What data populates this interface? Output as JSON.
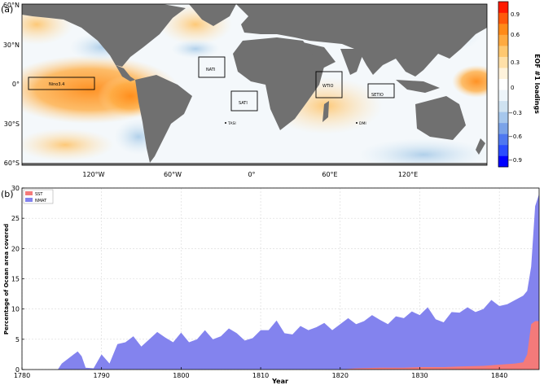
{
  "panel_a": {
    "label": "(a)",
    "lat_ticks": [
      "60°N",
      "30°N",
      "0°",
      "30°S",
      "60°S"
    ],
    "lon_ticks": [
      "120°W",
      "60°W",
      "0°",
      "60°E",
      "120°E"
    ],
    "boxes": [
      "Nino3.4",
      "NATI",
      "SATI",
      "WTIO",
      "SETIO"
    ],
    "markers": [
      "TASI",
      "DMI"
    ],
    "colorbar": {
      "label": "EOF #1 loadings",
      "ticks": [
        "0.9",
        "0.6",
        "0.3",
        "0",
        "−0.3",
        "−0.6",
        "−0.9"
      ],
      "colors": [
        "#0000ff",
        "#2a4cff",
        "#4f78f0",
        "#7ba3e8",
        "#a6c7ec",
        "#cfe2f0",
        "#eef5fa",
        "#ffffff",
        "#fff3dc",
        "#ffe0a8",
        "#ffc870",
        "#ffaa40",
        "#ff8a18",
        "#ff5a0a",
        "#ff1a00"
      ]
    }
  },
  "chart_data": {
    "type": "area",
    "panel_label": "(b)",
    "xlabel": "Year",
    "ylabel": "Percentage of Ocean area covered",
    "xlim": [
      1780,
      1845
    ],
    "ylim": [
      0,
      30
    ],
    "x_ticks": [
      "1780",
      "1790",
      "1800",
      "1810",
      "1820",
      "1830",
      "1840"
    ],
    "y_ticks": [
      "0",
      "5",
      "10",
      "15",
      "20",
      "25",
      "30"
    ],
    "grid": true,
    "legend_position": "top-left",
    "series": [
      {
        "name": "SST",
        "color": "#f47a7a",
        "x": [
          1780,
          1820,
          1822,
          1825,
          1828,
          1830,
          1833,
          1835,
          1838,
          1840,
          1842,
          1843,
          1843.5,
          1844,
          1844.5,
          1845
        ],
        "values": [
          0,
          0,
          0.2,
          0.3,
          0.3,
          0.4,
          0.4,
          0.5,
          0.6,
          0.8,
          1.0,
          1.2,
          2.5,
          7.5,
          8.0,
          8.0
        ]
      },
      {
        "name": "NMAT",
        "color": "#8383ee",
        "x": [
          1780,
          1784.5,
          1785,
          1786,
          1786.5,
          1787,
          1787.5,
          1788,
          1789,
          1790,
          1791,
          1792,
          1793,
          1794,
          1795,
          1796,
          1797,
          1798,
          1799,
          1800,
          1801,
          1802,
          1803,
          1804,
          1805,
          1806,
          1807,
          1808,
          1809,
          1810,
          1811,
          1812,
          1813,
          1814,
          1815,
          1816,
          1817,
          1818,
          1819,
          1820,
          1821,
          1822,
          1823,
          1824,
          1825,
          1826,
          1827,
          1828,
          1829,
          1830,
          1831,
          1832,
          1833,
          1834,
          1835,
          1836,
          1837,
          1838,
          1839,
          1840,
          1841,
          1842,
          1843,
          1843.5,
          1844,
          1844.5,
          1845
        ],
        "values": [
          0,
          0,
          1.0,
          2.0,
          2.5,
          3.0,
          2.2,
          0.3,
          0.2,
          2.5,
          1.0,
          4.2,
          4.5,
          5.5,
          3.8,
          5.0,
          6.2,
          5.3,
          4.5,
          6.1,
          4.5,
          5.0,
          6.5,
          5.0,
          5.5,
          6.8,
          6.0,
          4.8,
          5.2,
          6.5,
          6.5,
          8.1,
          6.0,
          5.8,
          7.2,
          6.5,
          7.0,
          7.7,
          6.5,
          7.5,
          8.5,
          7.5,
          8.0,
          9.0,
          8.2,
          7.5,
          8.8,
          8.5,
          9.6,
          9.0,
          10.3,
          8.3,
          7.8,
          9.5,
          9.4,
          10.3,
          9.5,
          10.0,
          11.5,
          10.5,
          10.8,
          11.5,
          12.2,
          13.0,
          17.0,
          27.0,
          29.0
        ]
      }
    ]
  }
}
